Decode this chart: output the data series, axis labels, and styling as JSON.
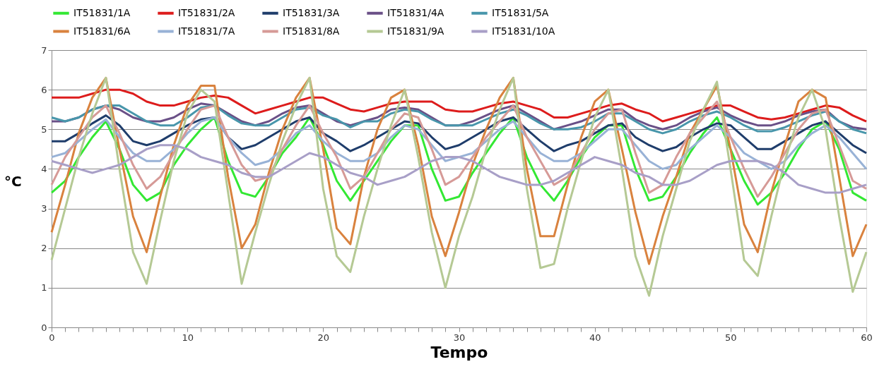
{
  "chart_data": {
    "type": "line",
    "xlabel": "Tempo",
    "ylabel": "°C",
    "x": [
      0,
      1,
      2,
      3,
      4,
      5,
      6,
      7,
      8,
      9,
      10,
      11,
      12,
      13,
      14,
      15,
      16,
      17,
      18,
      19,
      20,
      21,
      22,
      23,
      24,
      25,
      26,
      27,
      28,
      29,
      30,
      31,
      32,
      33,
      34,
      35,
      36,
      37,
      38,
      39,
      40,
      41,
      42,
      43,
      44,
      45,
      46,
      47,
      48,
      49,
      50,
      51,
      52,
      53,
      54,
      55,
      56,
      57,
      58,
      59,
      60
    ],
    "xlim": [
      0,
      60
    ],
    "xticks": [
      0,
      {
        "value": 1,
        "label": null
      },
      {
        "value": 2,
        "label": null
      },
      {
        "value": 3,
        "label": null
      },
      {
        "value": 4,
        "label": null
      },
      {
        "value": 5,
        "label": null
      },
      {
        "value": 6,
        "label": null
      },
      {
        "value": 7,
        "label": null
      },
      {
        "value": 8,
        "label": null
      },
      {
        "value": 9,
        "label": null
      },
      10,
      {
        "value": 11,
        "label": null
      },
      {
        "value": 12,
        "label": null
      },
      {
        "value": 13,
        "label": null
      },
      {
        "value": 14,
        "label": null
      },
      {
        "value": 15,
        "label": null
      },
      {
        "value": 16,
        "label": null
      },
      {
        "value": 17,
        "label": null
      },
      {
        "value": 18,
        "label": null
      },
      {
        "value": 19,
        "label": null
      },
      20,
      {
        "value": 21,
        "label": null
      },
      {
        "value": 22,
        "label": null
      },
      {
        "value": 23,
        "label": null
      },
      {
        "value": 24,
        "label": null
      },
      {
        "value": 25,
        "label": null
      },
      {
        "value": 26,
        "label": null
      },
      {
        "value": 27,
        "label": null
      },
      {
        "value": 28,
        "label": null
      },
      {
        "value": 29,
        "label": null
      },
      30,
      {
        "value": 31,
        "label": null
      },
      {
        "value": 32,
        "label": null
      },
      {
        "value": 33,
        "label": null
      },
      {
        "value": 34,
        "label": null
      },
      {
        "value": 35,
        "label": null
      },
      {
        "value": 36,
        "label": null
      },
      {
        "value": 37,
        "label": null
      },
      {
        "value": 38,
        "label": null
      },
      {
        "value": 39,
        "label": null
      },
      40,
      {
        "value": 41,
        "label": null
      },
      {
        "value": 42,
        "label": null
      },
      {
        "value": 43,
        "label": null
      },
      {
        "value": 44,
        "label": null
      },
      {
        "value": 45,
        "label": null
      },
      {
        "value": 46,
        "label": null
      },
      {
        "value": 47,
        "label": null
      },
      {
        "value": 48,
        "label": null
      },
      {
        "value": 49,
        "label": null
      },
      50,
      {
        "value": 51,
        "label": null
      },
      {
        "value": 52,
        "label": null
      },
      {
        "value": 53,
        "label": null
      },
      {
        "value": 54,
        "label": null
      },
      {
        "value": 55,
        "label": null
      },
      {
        "value": 56,
        "label": null
      },
      {
        "value": 57,
        "label": null
      },
      {
        "value": 58,
        "label": null
      },
      {
        "value": 59,
        "label": null
      },
      60
    ],
    "ylim": [
      0,
      7
    ],
    "yticks": [
      0,
      1,
      2,
      3,
      4,
      5,
      6,
      7
    ],
    "grid": "y",
    "legend": "top",
    "series": [
      {
        "name": "IT51831/1A",
        "color": "#33e833",
        "values": [
          3.4,
          3.7,
          4.3,
          4.8,
          5.2,
          4.5,
          3.6,
          3.2,
          3.4,
          4.1,
          4.6,
          5.0,
          5.3,
          4.2,
          3.4,
          3.3,
          3.8,
          4.4,
          4.8,
          5.3,
          4.6,
          3.7,
          3.2,
          3.7,
          4.2,
          4.7,
          5.1,
          5.1,
          4.0,
          3.2,
          3.3,
          3.9,
          4.4,
          4.9,
          5.3,
          4.3,
          3.6,
          3.2,
          3.7,
          4.3,
          4.8,
          5.1,
          5.1,
          4.0,
          3.2,
          3.3,
          3.8,
          4.4,
          4.9,
          5.3,
          4.5,
          3.7,
          3.1,
          3.4,
          3.9,
          4.5,
          5.0,
          5.2,
          4.5,
          3.4,
          3.2
        ]
      },
      {
        "name": "IT51831/2A",
        "color": "#dd1c1c",
        "values": [
          5.8,
          5.8,
          5.8,
          5.9,
          6.0,
          6.0,
          5.9,
          5.7,
          5.6,
          5.6,
          5.7,
          5.8,
          5.85,
          5.8,
          5.6,
          5.4,
          5.5,
          5.6,
          5.7,
          5.8,
          5.8,
          5.65,
          5.5,
          5.45,
          5.55,
          5.65,
          5.7,
          5.7,
          5.7,
          5.5,
          5.45,
          5.45,
          5.55,
          5.65,
          5.7,
          5.6,
          5.5,
          5.3,
          5.3,
          5.4,
          5.5,
          5.6,
          5.65,
          5.5,
          5.4,
          5.2,
          5.3,
          5.4,
          5.5,
          5.6,
          5.6,
          5.45,
          5.3,
          5.25,
          5.3,
          5.4,
          5.5,
          5.6,
          5.55,
          5.35,
          5.2
        ]
      },
      {
        "name": "IT51831/3A",
        "color": "#1f3d6b",
        "values": [
          4.7,
          4.7,
          4.9,
          5.15,
          5.35,
          5.1,
          4.7,
          4.6,
          4.7,
          4.9,
          5.1,
          5.25,
          5.3,
          4.8,
          4.5,
          4.6,
          4.8,
          5.0,
          5.2,
          5.3,
          4.9,
          4.7,
          4.45,
          4.6,
          4.8,
          5.0,
          5.2,
          5.15,
          4.8,
          4.5,
          4.6,
          4.8,
          5.0,
          5.2,
          5.3,
          5.0,
          4.7,
          4.45,
          4.6,
          4.7,
          4.9,
          5.1,
          5.15,
          4.8,
          4.6,
          4.45,
          4.55,
          4.8,
          5.0,
          5.15,
          5.1,
          4.8,
          4.5,
          4.5,
          4.7,
          4.9,
          5.1,
          5.2,
          4.9,
          4.6,
          4.4
        ]
      },
      {
        "name": "IT51831/4A",
        "color": "#6a5087",
        "values": [
          5.2,
          5.2,
          5.3,
          5.5,
          5.6,
          5.5,
          5.3,
          5.2,
          5.2,
          5.3,
          5.5,
          5.65,
          5.6,
          5.4,
          5.2,
          5.1,
          5.2,
          5.4,
          5.55,
          5.6,
          5.4,
          5.2,
          5.1,
          5.2,
          5.3,
          5.5,
          5.55,
          5.5,
          5.3,
          5.1,
          5.1,
          5.2,
          5.35,
          5.5,
          5.6,
          5.4,
          5.2,
          5.0,
          5.1,
          5.2,
          5.35,
          5.5,
          5.5,
          5.25,
          5.1,
          5.0,
          5.1,
          5.3,
          5.45,
          5.55,
          5.35,
          5.2,
          5.1,
          5.1,
          5.2,
          5.35,
          5.45,
          5.5,
          5.2,
          5.05,
          5.0
        ]
      },
      {
        "name": "IT51831/5A",
        "color": "#4896ab",
        "values": [
          5.3,
          5.2,
          5.3,
          5.5,
          5.6,
          5.6,
          5.4,
          5.2,
          5.1,
          5.1,
          5.3,
          5.55,
          5.6,
          5.35,
          5.15,
          5.1,
          5.1,
          5.3,
          5.5,
          5.55,
          5.35,
          5.25,
          5.05,
          5.2,
          5.2,
          5.4,
          5.5,
          5.45,
          5.25,
          5.1,
          5.1,
          5.1,
          5.25,
          5.4,
          5.5,
          5.35,
          5.15,
          5.0,
          5.0,
          5.05,
          5.2,
          5.4,
          5.4,
          5.2,
          5.0,
          4.9,
          5.0,
          5.2,
          5.35,
          5.45,
          5.3,
          5.1,
          4.95,
          4.95,
          5.05,
          5.2,
          5.35,
          5.45,
          5.2,
          5.0,
          4.9
        ]
      },
      {
        "name": "IT51831/6A",
        "color": "#d9823e",
        "values": [
          2.4,
          3.6,
          4.9,
          5.8,
          6.3,
          4.5,
          2.8,
          1.9,
          3.3,
          4.6,
          5.6,
          6.1,
          6.1,
          3.8,
          2.0,
          2.6,
          3.9,
          5.0,
          5.8,
          6.3,
          4.5,
          2.5,
          2.1,
          3.8,
          5.0,
          5.8,
          6.0,
          4.6,
          2.8,
          1.8,
          2.9,
          4.1,
          5.0,
          5.8,
          6.3,
          4.0,
          2.3,
          2.3,
          3.6,
          4.8,
          5.7,
          6.0,
          4.5,
          2.9,
          1.6,
          2.8,
          3.8,
          4.9,
          5.5,
          6.1,
          4.5,
          2.6,
          1.9,
          3.4,
          4.6,
          5.7,
          6.0,
          5.8,
          3.8,
          1.8,
          2.6
        ]
      },
      {
        "name": "IT51831/7A",
        "color": "#98b2d6",
        "values": [
          4.3,
          4.4,
          4.7,
          5.0,
          5.25,
          4.8,
          4.4,
          4.2,
          4.2,
          4.5,
          4.9,
          5.2,
          5.3,
          4.8,
          4.4,
          4.1,
          4.2,
          4.5,
          4.9,
          5.1,
          4.7,
          4.4,
          4.2,
          4.2,
          4.4,
          4.8,
          5.1,
          5.0,
          4.6,
          4.2,
          4.3,
          4.4,
          4.7,
          5.0,
          5.2,
          4.8,
          4.4,
          4.2,
          4.2,
          4.4,
          4.7,
          5.0,
          5.0,
          4.6,
          4.2,
          4.0,
          4.1,
          4.5,
          4.8,
          5.1,
          4.8,
          4.4,
          4.2,
          4.0,
          4.2,
          4.6,
          4.9,
          5.1,
          4.8,
          4.4,
          4.0
        ]
      },
      {
        "name": "IT51831/8A",
        "color": "#d69a97",
        "values": [
          3.6,
          4.3,
          4.8,
          5.3,
          5.6,
          4.9,
          4.1,
          3.5,
          3.8,
          4.4,
          5.0,
          5.5,
          5.6,
          4.8,
          4.1,
          3.7,
          3.8,
          4.5,
          5.1,
          5.6,
          4.9,
          4.3,
          3.5,
          3.8,
          4.4,
          5.0,
          5.4,
          5.3,
          4.5,
          3.6,
          3.8,
          4.3,
          4.8,
          5.2,
          5.6,
          4.8,
          4.2,
          3.6,
          3.8,
          4.4,
          5.0,
          5.4,
          5.5,
          4.4,
          3.4,
          3.6,
          4.3,
          4.9,
          5.3,
          5.7,
          4.8,
          4.0,
          3.3,
          3.8,
          4.4,
          5.0,
          5.4,
          5.5,
          4.6,
          3.7,
          3.5
        ]
      },
      {
        "name": "IT51831/9A",
        "color": "#b5c994",
        "values": [
          1.7,
          3.0,
          4.3,
          5.4,
          6.3,
          4.0,
          1.9,
          1.1,
          2.7,
          4.2,
          5.4,
          6.0,
          5.7,
          3.4,
          1.1,
          2.4,
          3.6,
          4.7,
          5.6,
          6.3,
          3.5,
          1.8,
          1.4,
          2.8,
          4.0,
          5.1,
          6.0,
          4.3,
          2.4,
          1.0,
          2.3,
          3.3,
          4.5,
          5.5,
          6.3,
          3.5,
          1.5,
          1.6,
          3.0,
          4.2,
          5.3,
          6.0,
          4.0,
          1.8,
          0.8,
          2.3,
          3.5,
          4.7,
          5.5,
          6.2,
          4.0,
          1.7,
          1.3,
          2.8,
          4.2,
          5.3,
          6.0,
          5.0,
          2.8,
          0.9,
          1.9
        ]
      },
      {
        "name": "IT51831/10A",
        "color": "#a89fc7",
        "values": [
          4.2,
          4.1,
          4.0,
          3.9,
          4.0,
          4.1,
          4.3,
          4.5,
          4.6,
          4.6,
          4.5,
          4.3,
          4.2,
          4.1,
          3.9,
          3.8,
          3.8,
          4.0,
          4.2,
          4.4,
          4.3,
          4.1,
          3.9,
          3.8,
          3.6,
          3.7,
          3.8,
          4.0,
          4.2,
          4.3,
          4.3,
          4.2,
          4.0,
          3.8,
          3.7,
          3.6,
          3.6,
          3.7,
          3.9,
          4.1,
          4.3,
          4.2,
          4.1,
          3.9,
          3.8,
          3.6,
          3.6,
          3.7,
          3.9,
          4.1,
          4.2,
          4.2,
          4.2,
          4.1,
          3.9,
          3.6,
          3.5,
          3.4,
          3.4,
          3.5,
          3.6
        ]
      }
    ]
  }
}
